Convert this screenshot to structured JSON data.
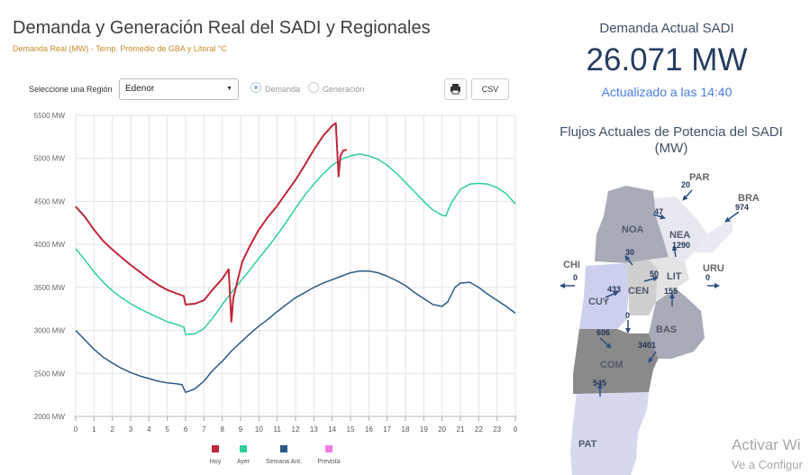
{
  "header": {
    "title": "Demanda y Generación Real del SADI y Regionales",
    "subtitle": "Demanda Real (MW) - Temp. Promedio de GBA y Litoral °C"
  },
  "controls": {
    "region_label": "Seleccione una Región",
    "region_value": "Edenor",
    "radio_demanda": "Demanda",
    "radio_generacion": "Generación",
    "csv_label": "CSV"
  },
  "summary": {
    "title": "Demanda Actual SADI",
    "value": "26.071 MW",
    "updated": "Actualizado a las 14:40"
  },
  "flows": {
    "title_line1": "Flujos Actuales de Potencia del SADI",
    "title_line2": "(MW)",
    "regions": {
      "noa": "NOA",
      "nea": "NEA",
      "cen": "CEN",
      "lit": "LIT",
      "cuy": "CUY",
      "bas": "BAS",
      "com": "COM",
      "pat": "PAT"
    },
    "neighbors": {
      "par": "PAR",
      "bra": "BRA",
      "chi": "CHI",
      "uru": "URU"
    },
    "values": {
      "par": "20",
      "noa_nea": "47",
      "bra": "974",
      "nea": "1290",
      "noa_cen": "30",
      "cen_lit": "50",
      "chi": "0",
      "cuy_cen": "433",
      "lit_bas": "155",
      "uru": "0",
      "cen_com": "0",
      "cuy_com": "606",
      "bas_com": "3401",
      "pat_com": "545"
    }
  },
  "watermark": {
    "line1": "Activar Wi",
    "line2": "Ve a Configur"
  },
  "colors": {
    "hoy": "#c0263a",
    "ayer": "#2ecf96",
    "semana": "#2b5a85",
    "prevista": "#f07ee8"
  },
  "chart_data": {
    "type": "line",
    "title": "Demanda y Generación Real del SADI y Regionales",
    "ylim": [
      2000,
      5500
    ],
    "yticks": [
      2000,
      2500,
      3000,
      3500,
      4000,
      4500,
      5000,
      5500
    ],
    "ytick_labels": [
      "2000 MW",
      "2500 MW",
      "3000 MW",
      "3500 MW",
      "4000 MW",
      "4500 MW",
      "5000 MW",
      "5500 MW"
    ],
    "xlim": [
      0,
      24
    ],
    "xtick_labels": [
      "0",
      "1",
      "2",
      "3",
      "4",
      "5",
      "6",
      "7",
      "8",
      "9",
      "10",
      "11",
      "12",
      "13",
      "14",
      "15",
      "16",
      "17",
      "18",
      "19",
      "20",
      "21",
      "22",
      "23",
      "0"
    ],
    "legend": [
      "Hoy",
      "Ayer",
      "Semana Ant.",
      "Prevista"
    ],
    "series": [
      {
        "name": "Hoy",
        "color": "#c0263a",
        "points": [
          [
            0,
            4440
          ],
          [
            0.5,
            4320
          ],
          [
            1,
            4170
          ],
          [
            1.5,
            4040
          ],
          [
            2,
            3940
          ],
          [
            2.5,
            3850
          ],
          [
            3,
            3760
          ],
          [
            3.5,
            3680
          ],
          [
            4,
            3600
          ],
          [
            4.5,
            3530
          ],
          [
            5,
            3470
          ],
          [
            5.5,
            3430
          ],
          [
            5.9,
            3400
          ],
          [
            6,
            3300
          ],
          [
            6.5,
            3310
          ],
          [
            7,
            3350
          ],
          [
            7.5,
            3480
          ],
          [
            8,
            3600
          ],
          [
            8.35,
            3710
          ],
          [
            8.5,
            3100
          ],
          [
            8.6,
            3370
          ],
          [
            8.9,
            3640
          ],
          [
            9.1,
            3800
          ],
          [
            9.5,
            3980
          ],
          [
            10,
            4170
          ],
          [
            10.5,
            4320
          ],
          [
            11,
            4450
          ],
          [
            11.5,
            4600
          ],
          [
            12,
            4750
          ],
          [
            12.5,
            4920
          ],
          [
            13,
            5100
          ],
          [
            13.5,
            5260
          ],
          [
            14,
            5380
          ],
          [
            14.2,
            5410
          ],
          [
            14.35,
            4790
          ],
          [
            14.45,
            5030
          ],
          [
            14.6,
            5090
          ],
          [
            14.8,
            5100
          ]
        ]
      },
      {
        "name": "Ayer",
        "color": "#2ecf96",
        "points": [
          [
            0,
            3950
          ],
          [
            0.5,
            3820
          ],
          [
            1,
            3680
          ],
          [
            1.5,
            3560
          ],
          [
            2,
            3460
          ],
          [
            2.5,
            3380
          ],
          [
            3,
            3310
          ],
          [
            3.5,
            3250
          ],
          [
            4,
            3200
          ],
          [
            4.5,
            3150
          ],
          [
            5,
            3100
          ],
          [
            5.5,
            3070
          ],
          [
            5.9,
            3040
          ],
          [
            6,
            2950
          ],
          [
            6.5,
            2960
          ],
          [
            7,
            3020
          ],
          [
            7.5,
            3150
          ],
          [
            8,
            3300
          ],
          [
            8.5,
            3440
          ],
          [
            9,
            3570
          ],
          [
            9.5,
            3700
          ],
          [
            10,
            3840
          ],
          [
            10.5,
            3970
          ],
          [
            11,
            4110
          ],
          [
            11.5,
            4260
          ],
          [
            12,
            4420
          ],
          [
            12.5,
            4570
          ],
          [
            13,
            4700
          ],
          [
            13.5,
            4820
          ],
          [
            14,
            4920
          ],
          [
            14.5,
            4990
          ],
          [
            15,
            5030
          ],
          [
            15.5,
            5050
          ],
          [
            16,
            5030
          ],
          [
            16.5,
            4990
          ],
          [
            17,
            4920
          ],
          [
            17.5,
            4830
          ],
          [
            18,
            4720
          ],
          [
            18.5,
            4610
          ],
          [
            19,
            4500
          ],
          [
            19.5,
            4400
          ],
          [
            20,
            4340
          ],
          [
            20.2,
            4330
          ],
          [
            20.5,
            4480
          ],
          [
            21,
            4640
          ],
          [
            21.5,
            4700
          ],
          [
            22,
            4710
          ],
          [
            22.5,
            4700
          ],
          [
            23,
            4660
          ],
          [
            23.5,
            4590
          ],
          [
            24,
            4470
          ]
        ]
      },
      {
        "name": "Semana Ant.",
        "color": "#2b5a85",
        "points": [
          [
            0,
            3000
          ],
          [
            0.5,
            2890
          ],
          [
            1,
            2780
          ],
          [
            1.5,
            2690
          ],
          [
            2,
            2620
          ],
          [
            2.5,
            2560
          ],
          [
            3,
            2510
          ],
          [
            3.5,
            2470
          ],
          [
            4,
            2440
          ],
          [
            4.5,
            2410
          ],
          [
            5,
            2390
          ],
          [
            5.5,
            2380
          ],
          [
            5.8,
            2370
          ],
          [
            6,
            2280
          ],
          [
            6.5,
            2320
          ],
          [
            7,
            2410
          ],
          [
            7.5,
            2540
          ],
          [
            8,
            2640
          ],
          [
            8.5,
            2760
          ],
          [
            9,
            2860
          ],
          [
            9.5,
            2960
          ],
          [
            10,
            3050
          ],
          [
            10.5,
            3130
          ],
          [
            11,
            3220
          ],
          [
            11.5,
            3300
          ],
          [
            12,
            3380
          ],
          [
            12.5,
            3440
          ],
          [
            13,
            3500
          ],
          [
            13.5,
            3550
          ],
          [
            14,
            3590
          ],
          [
            14.5,
            3630
          ],
          [
            15,
            3670
          ],
          [
            15.5,
            3690
          ],
          [
            16,
            3690
          ],
          [
            16.5,
            3670
          ],
          [
            17,
            3630
          ],
          [
            17.5,
            3580
          ],
          [
            18,
            3520
          ],
          [
            18.5,
            3440
          ],
          [
            19,
            3370
          ],
          [
            19.5,
            3300
          ],
          [
            20,
            3280
          ],
          [
            20.3,
            3330
          ],
          [
            20.7,
            3500
          ],
          [
            21,
            3550
          ],
          [
            21.5,
            3560
          ],
          [
            22,
            3500
          ],
          [
            22.5,
            3420
          ],
          [
            23,
            3350
          ],
          [
            23.5,
            3280
          ],
          [
            24,
            3200
          ]
        ]
      },
      {
        "name": "Prevista",
        "color": "#f07ee8",
        "points": []
      }
    ]
  }
}
